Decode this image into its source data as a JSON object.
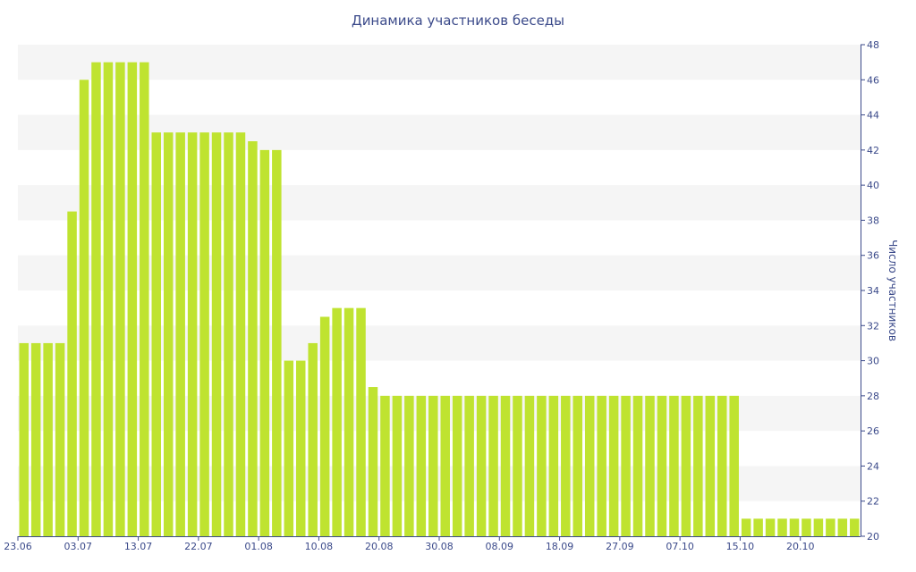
{
  "chart_data": {
    "type": "bar",
    "title": "Динамика участников беседы",
    "xlabel": "",
    "ylabel": "Число участников",
    "ylim": [
      20,
      48
    ],
    "y_ticks": [
      "20",
      "22",
      "24",
      "26",
      "28",
      "30",
      "32",
      "34",
      "36",
      "38",
      "40",
      "42",
      "44",
      "46",
      "48"
    ],
    "x_tick_labels": [
      {
        "label": "23.06",
        "index": 0
      },
      {
        "label": "03.07",
        "index": 5
      },
      {
        "label": "13.07",
        "index": 10
      },
      {
        "label": "22.07",
        "index": 15
      },
      {
        "label": "01.08",
        "index": 20
      },
      {
        "label": "10.08",
        "index": 25
      },
      {
        "label": "20.08",
        "index": 30
      },
      {
        "label": "30.08",
        "index": 35
      },
      {
        "label": "08.09",
        "index": 40
      },
      {
        "label": "18.09",
        "index": 45
      },
      {
        "label": "27.09",
        "index": 50
      },
      {
        "label": "07.10",
        "index": 55
      },
      {
        "label": "15.10",
        "index": 60
      },
      {
        "label": "20.10",
        "index": 65
      }
    ],
    "values": [
      31,
      31,
      31,
      31,
      38.5,
      46,
      47,
      47,
      47,
      47,
      47,
      43,
      43,
      43,
      43,
      43,
      43,
      43,
      43,
      42.5,
      42,
      42,
      30,
      30,
      31,
      32.5,
      33,
      33,
      33,
      28.5,
      28,
      28,
      28,
      28,
      28,
      28,
      28,
      28,
      28,
      28,
      28,
      28,
      28,
      28,
      28,
      28,
      28,
      28,
      28,
      28,
      28,
      28,
      28,
      28,
      28,
      28,
      28,
      28,
      28,
      28,
      21,
      21,
      21,
      21,
      21,
      21,
      21,
      21,
      21,
      21
    ],
    "bar_color": "#bfe330",
    "grid": true,
    "grid_stripe_color": "#f5f5f5",
    "y_axis_side": "right"
  }
}
